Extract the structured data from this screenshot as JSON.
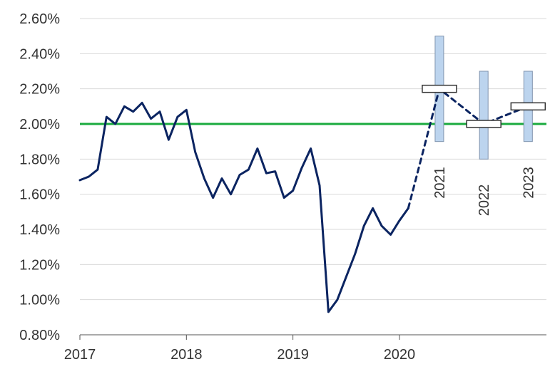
{
  "chart_data": {
    "type": "line",
    "title": "",
    "xlabel": "",
    "ylabel": "",
    "ylim": [
      0.8,
      2.6
    ],
    "yticks": [
      "0.80%",
      "1.00%",
      "1.20%",
      "1.40%",
      "1.60%",
      "1.80%",
      "2.00%",
      "2.20%",
      "2.40%",
      "2.60%"
    ],
    "ytick_values": [
      0.8,
      1.0,
      1.2,
      1.4,
      1.6,
      1.8,
      2.0,
      2.2,
      2.4,
      2.6
    ],
    "xticks": [
      "2017",
      "2018",
      "2019",
      "2020"
    ],
    "xtick_values": [
      2017.0,
      2018.0,
      2019.0,
      2020.0
    ],
    "xlim": [
      2017.0,
      2021.38
    ],
    "grid": "horizontal",
    "target_line": {
      "value": 2.0,
      "color": "#1aab3e"
    },
    "series": [
      {
        "type": "line",
        "color": "#0b2461",
        "x": [
          2017.0,
          2017.083,
          2017.167,
          2017.25,
          2017.333,
          2017.417,
          2017.5,
          2017.583,
          2017.667,
          2017.75,
          2017.833,
          2017.917,
          2018.0,
          2018.083,
          2018.167,
          2018.25,
          2018.333,
          2018.417,
          2018.5,
          2018.583,
          2018.667,
          2018.75,
          2018.833,
          2018.917,
          2019.0,
          2019.083,
          2019.167,
          2019.25,
          2019.333,
          2019.417,
          2019.5,
          2019.583,
          2019.667,
          2019.75,
          2019.833,
          2019.917,
          2020.0,
          2020.083
        ],
        "y": [
          1.68,
          1.7,
          1.74,
          2.04,
          2.0,
          2.1,
          2.07,
          2.12,
          2.03,
          2.07,
          1.91,
          2.04,
          2.08,
          1.84,
          1.69,
          1.58,
          1.69,
          1.6,
          1.71,
          1.74,
          1.86,
          1.72,
          1.73,
          1.58,
          1.62,
          1.75,
          1.86,
          1.65,
          0.93,
          1.0,
          1.13,
          1.26,
          1.42,
          1.52,
          1.42,
          1.37,
          1.45,
          1.52
        ]
      },
      {
        "type": "dashed",
        "color": "#0b2461",
        "x": [
          2020.083,
          2020.375,
          2020.792,
          2021.208
        ],
        "y": [
          1.52,
          2.2,
          2.0,
          2.1
        ]
      }
    ],
    "projections": [
      {
        "label": "2021",
        "x": 2020.375,
        "median": 2.2,
        "low": 1.9,
        "high": 2.5
      },
      {
        "label": "2022",
        "x": 2020.792,
        "median": 2.0,
        "low": 1.8,
        "high": 2.3
      },
      {
        "label": "2023",
        "x": 2021.208,
        "median": 2.1,
        "low": 1.9,
        "high": 2.3
      }
    ],
    "colors": {
      "range_fill": "#bcd4ee",
      "range_stroke": "#7f93ad",
      "median_fill": "#ffffff",
      "median_stroke": "#333333",
      "gridline": "#d9d9d9",
      "axis": "#555555"
    }
  }
}
